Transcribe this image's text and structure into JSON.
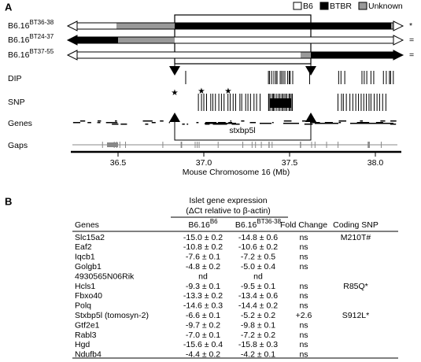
{
  "panel_a": {
    "label": "A",
    "legend": [
      "B6",
      "BTBR",
      "Unknown"
    ],
    "strains": [
      {
        "name": "B6.16",
        "sup": "BT36-38",
        "mark": "*"
      },
      {
        "name": "B6.16",
        "sup": "BT24-37",
        "mark": "="
      },
      {
        "name": "B6.16",
        "sup": "BT37-55",
        "mark": "="
      }
    ],
    "tracks": [
      "DIP",
      "SNP",
      "Genes",
      "Gaps"
    ],
    "gene_label": "stxbp5l",
    "axis": {
      "ticks": [
        "36.5",
        "37.0",
        "37.5",
        "38.0"
      ],
      "label": "Mouse Chromosome 16 (Mb)"
    }
  },
  "panel_b": {
    "label": "B",
    "group_header": [
      "Islet gene expression",
      "(ΔCt relative to β-actin)"
    ],
    "columns": [
      {
        "name": "Genes"
      },
      {
        "name": "B6.16",
        "sup": "B6"
      },
      {
        "name": "B6.16",
        "sup": "BT36-38"
      },
      {
        "name": "Fold Change"
      },
      {
        "name": "Coding SNP"
      }
    ],
    "rows": [
      [
        "Slc15a2",
        "-15.0 ± 0.2",
        "-14.8 ± 0.6",
        "ns",
        "M210T#"
      ],
      [
        "Eaf2",
        "-10.8 ± 0.2",
        "-10.6 ± 0.2",
        "ns",
        null
      ],
      [
        "Iqcb1",
        "-7.6 ± 0.1",
        "-7.2 ± 0.5",
        "ns",
        null
      ],
      [
        "Golgb1",
        "-4.8 ± 0.2",
        "-5.0 ± 0.4",
        "ns",
        null
      ],
      [
        "4930565N06Rik",
        "nd",
        "nd",
        null,
        null
      ],
      [
        "Hcls1",
        "-9.3 ± 0.1",
        "-9.5 ± 0.1",
        "ns",
        "R85Q*"
      ],
      [
        "Fbxo40",
        "-13.3 ± 0.2",
        "-13.4 ± 0.6",
        "ns",
        null
      ],
      [
        "Polq",
        "-14.6 ± 0.3",
        "-14.4 ± 0.2",
        "ns",
        null
      ],
      [
        "Stxbp5l (tomosyn-2)",
        "-6.6 ± 0.1",
        "-5.2 ± 0.2",
        "+2.6",
        "S912L*"
      ],
      [
        "Gtf2e1",
        "-9.7 ± 0.2",
        "-9.8 ± 0.1",
        "ns",
        null
      ],
      [
        "Rabl3",
        "-7.0 ± 0.1",
        "-7.2 ± 0.2",
        "ns",
        null
      ],
      [
        "Hgd",
        "-15.6 ± 0.4",
        "-15.8 ± 0.3",
        "ns",
        null
      ],
      [
        "Ndufb4",
        "-4.4 ± 0.2",
        "-4.2 ± 0.1",
        "ns",
        null
      ]
    ]
  }
}
